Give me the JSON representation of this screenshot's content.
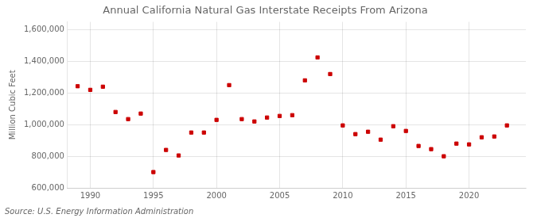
{
  "chart_data": {
    "type": "scatter",
    "title": "Annual California Natural Gas Interstate Receipts From Arizona",
    "ylabel": "Million Cubic Feet",
    "annotations": [
      "Source: U.S. Energy Information Administration"
    ],
    "x": [
      1989,
      1990,
      1991,
      1992,
      1993,
      1994,
      1995,
      1996,
      1997,
      1998,
      1999,
      2000,
      2001,
      2002,
      2003,
      2004,
      2005,
      2006,
      2007,
      2008,
      2009,
      2010,
      2011,
      2012,
      2013,
      2014,
      2015,
      2016,
      2017,
      2018,
      2019,
      2020,
      2021,
      2022,
      2023
    ],
    "values": [
      1243000,
      1220000,
      1240000,
      1080000,
      1035000,
      1070000,
      700000,
      840000,
      805000,
      950000,
      950000,
      1030000,
      1250000,
      1035000,
      1020000,
      1045000,
      1055000,
      1060000,
      1280000,
      1425000,
      1320000,
      995000,
      940000,
      955000,
      905000,
      990000,
      960000,
      865000,
      845000,
      800000,
      880000,
      875000,
      920000,
      925000,
      995000
    ],
    "color": "#cc0000",
    "marker": "square",
    "xlim": [
      1988.2,
      2024.5
    ],
    "xticks": [
      1990,
      1995,
      2000,
      2005,
      2010,
      2015,
      2020
    ],
    "ylim": [
      600000,
      1650000
    ],
    "yticks": [
      {
        "value": 600000,
        "label": "600,000"
      },
      {
        "value": 800000,
        "label": "800,000"
      },
      {
        "value": 1000000,
        "label": "1,000,000"
      },
      {
        "value": 1200000,
        "label": "1,200,000"
      },
      {
        "value": 1400000,
        "label": "1,400,000"
      },
      {
        "value": 1600000,
        "label": "1,600,000"
      }
    ],
    "grid": true
  }
}
